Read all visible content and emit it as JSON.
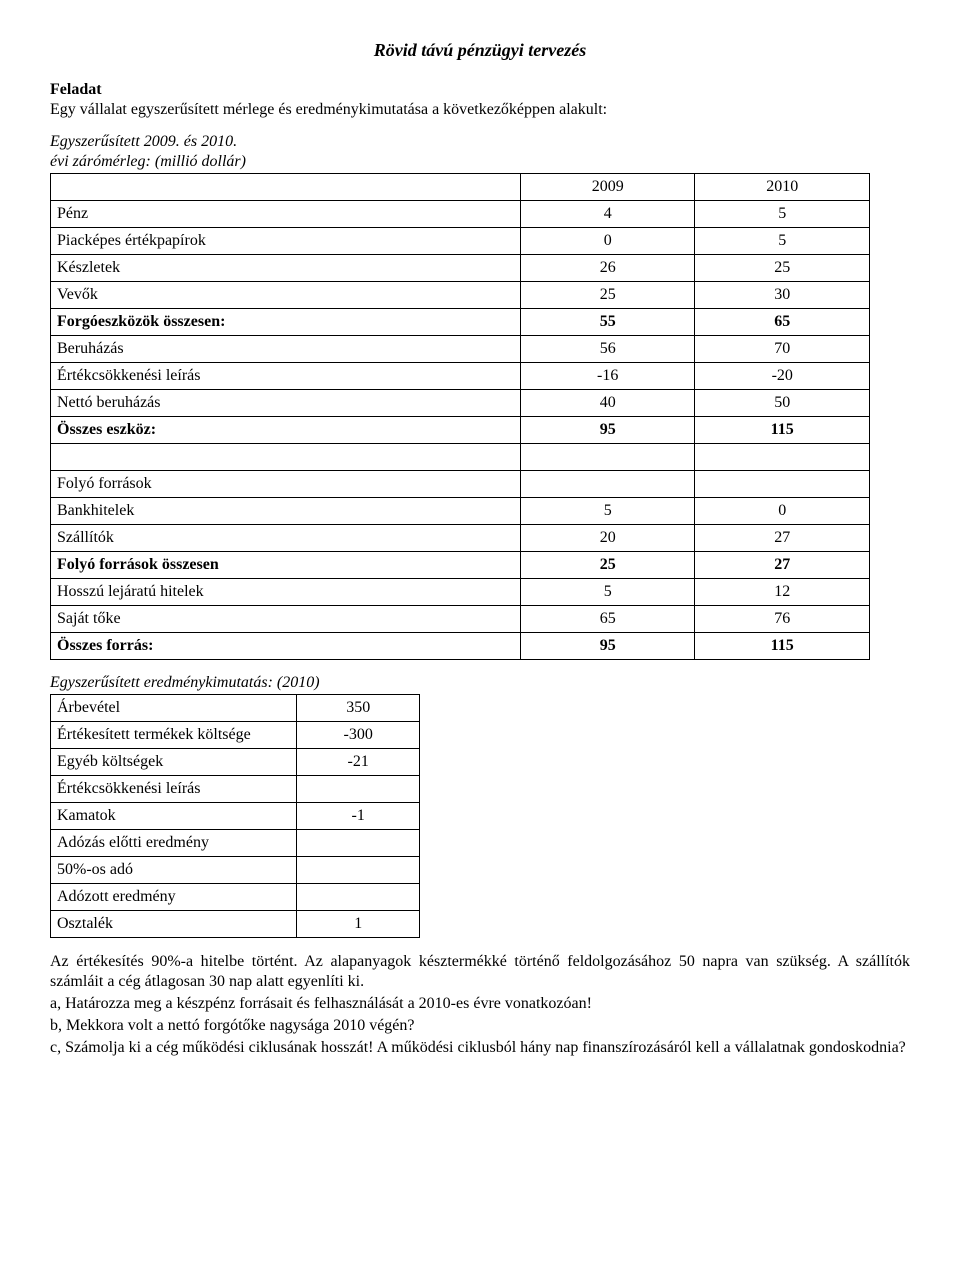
{
  "title": "Rövid távú pénzügyi tervezés",
  "intro": {
    "heading": "Feladat",
    "line1": "Egy vállalat egyszerűsített mérlege és eredménykimutatása a következőképpen alakult:",
    "line2": "Egyszerűsített 2009. és 2010."
  },
  "table1": {
    "caption": "évi zárómérleg: (millió dollár)",
    "header": {
      "c2": "2009",
      "c3": "2010"
    },
    "rows": [
      {
        "label": "Pénz",
        "v1": "4",
        "v2": "5",
        "bold": false
      },
      {
        "label": "Piacképes értékpapírok",
        "v1": "0",
        "v2": "5",
        "bold": false
      },
      {
        "label": "Készletek",
        "v1": "26",
        "v2": "25",
        "bold": false
      },
      {
        "label": "Vevők",
        "v1": "25",
        "v2": "30",
        "bold": false
      },
      {
        "label": "Forgóeszközök összesen:",
        "v1": "55",
        "v2": "65",
        "bold": true
      },
      {
        "label": "Beruházás",
        "v1": "56",
        "v2": "70",
        "bold": false
      },
      {
        "label": "Értékcsökkenési leírás",
        "v1": "-16",
        "v2": "-20",
        "bold": false
      },
      {
        "label": "Nettó beruházás",
        "v1": "40",
        "v2": "50",
        "bold": false
      },
      {
        "label": "Összes eszköz:",
        "v1": "95",
        "v2": "115",
        "bold": true
      },
      {
        "label": "",
        "v1": "",
        "v2": "",
        "bold": false
      },
      {
        "label": "Folyó források",
        "v1": "",
        "v2": "",
        "bold": false
      },
      {
        "label": "Bankhitelek",
        "v1": "5",
        "v2": "0",
        "bold": false
      },
      {
        "label": "Szállítók",
        "v1": "20",
        "v2": "27",
        "bold": false
      },
      {
        "label": "Folyó források összesen",
        "v1": "25",
        "v2": "27",
        "bold": true
      },
      {
        "label": "Hosszú lejáratú hitelek",
        "v1": "5",
        "v2": "12",
        "bold": false
      },
      {
        "label": "Saját tőke",
        "v1": "65",
        "v2": "76",
        "bold": false
      },
      {
        "label": "Összes forrás:",
        "v1": "95",
        "v2": "115",
        "bold": true
      }
    ]
  },
  "table2": {
    "caption": "Egyszerűsített eredménykimutatás: (2010)",
    "rows": [
      {
        "label": "Árbevétel",
        "v": "350"
      },
      {
        "label": "Értékesített termékek költsége",
        "v": "-300"
      },
      {
        "label": "Egyéb költségek",
        "v": "-21"
      },
      {
        "label": "Értékcsökkenési leírás",
        "v": ""
      },
      {
        "label": "Kamatok",
        "v": "-1"
      },
      {
        "label": "Adózás előtti eredmény",
        "v": ""
      },
      {
        "label": "50%-os adó",
        "v": ""
      },
      {
        "label": "Adózott eredmény",
        "v": ""
      },
      {
        "label": "Osztalék",
        "v": "1"
      }
    ]
  },
  "body": {
    "p1": "Az értékesítés 90%-a hitelbe történt. Az alapanyagok késztermékké történő feldolgozásához 50 napra van szükség. A szállítók számláit a cég átlagosan 30 nap alatt egyenlíti ki.",
    "a": "a,  Határozza meg a készpénz forrásait és felhasználását a 2010-es évre vonatkozóan!",
    "b": "b,  Mekkora volt a nettó forgótőke nagysága 2010 végén?",
    "c": "c,  Számolja ki a cég működési ciklusának hosszát! A működési ciklusból hány nap finanszírozásáról kell a vállalatnak gondoskodnia?"
  }
}
